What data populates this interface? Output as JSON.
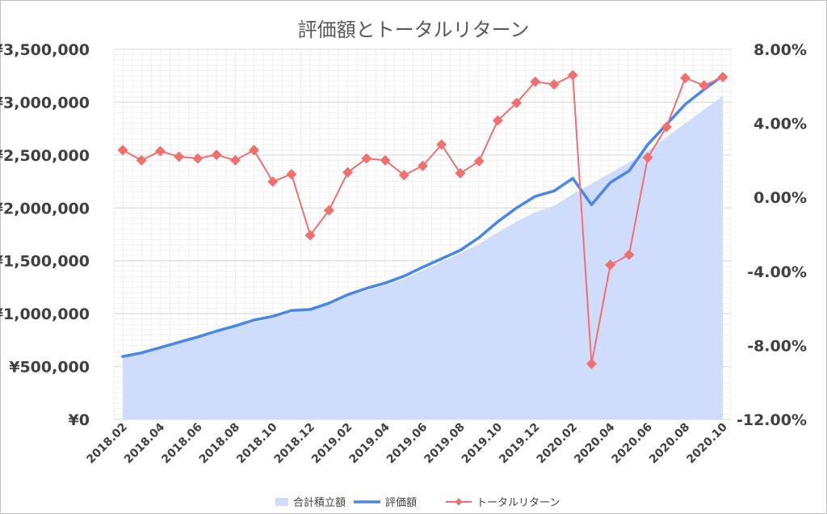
{
  "chart_data": {
    "type": "line",
    "title": "評価額とトータルリターン",
    "x": [
      "2018.02",
      "2018.03",
      "2018.04",
      "2018.05",
      "2018.06",
      "2018.07",
      "2018.08",
      "2018.09",
      "2018.10",
      "2018.11",
      "2018.12",
      "2019.01",
      "2019.02",
      "2019.03",
      "2019.04",
      "2019.05",
      "2019.06",
      "2019.07",
      "2019.08",
      "2019.09",
      "2019.10",
      "2019.11",
      "2019.12",
      "2020.01",
      "2020.02",
      "2020.03",
      "2020.04",
      "2020.05",
      "2020.06",
      "2020.07",
      "2020.08",
      "2020.09",
      "2020.10"
    ],
    "x_tick_labels": [
      "2018.02",
      "2018.04",
      "2018.06",
      "2018.08",
      "2018.10",
      "2018.12",
      "2019.02",
      "2019.04",
      "2019.06",
      "2019.08",
      "2019.10",
      "2019.12",
      "2020.02",
      "2020.04",
      "2020.06",
      "2020.08",
      "2020.10"
    ],
    "left_axis": {
      "ylim": [
        0,
        3500000
      ],
      "tick_labels": [
        "¥0",
        "¥500,000",
        "¥1,000,000",
        "¥1,500,000",
        "¥2,000,000",
        "¥2,500,000",
        "¥3,000,000",
        "¥3,500,000"
      ]
    },
    "right_axis": {
      "ylim": [
        -12,
        8
      ],
      "tick_labels": [
        "-12.00%",
        "-8.00%",
        "-4.00%",
        "0.00%",
        "4.00%",
        "8.00%"
      ]
    },
    "series": [
      {
        "name": "合計積立額",
        "type": "area",
        "axis": "left",
        "color": "#cfdcfb",
        "values": [
          590000,
          630000,
          680000,
          730000,
          780000,
          830000,
          880000,
          920000,
          960000,
          1010000,
          1040000,
          1100000,
          1170000,
          1220000,
          1270000,
          1330000,
          1410000,
          1490000,
          1570000,
          1660000,
          1770000,
          1870000,
          1960000,
          2020000,
          2130000,
          2230000,
          2330000,
          2430000,
          2540000,
          2670000,
          2800000,
          2930000,
          3060000
        ]
      },
      {
        "name": "評価額",
        "type": "line",
        "axis": "left",
        "color": "#4a86e8",
        "values": [
          595000,
          630000,
          680000,
          730000,
          780000,
          835000,
          885000,
          940000,
          975000,
          1030000,
          1040000,
          1100000,
          1180000,
          1240000,
          1290000,
          1355000,
          1440000,
          1520000,
          1600000,
          1720000,
          1870000,
          2000000,
          2110000,
          2160000,
          2280000,
          2030000,
          2240000,
          2350000,
          2600000,
          2790000,
          2980000,
          3120000,
          3250000
        ]
      },
      {
        "name": "トータルリターン",
        "type": "line",
        "axis": "right",
        "color": "#f07070",
        "values": [
          2.55,
          2.0,
          2.5,
          2.2,
          2.1,
          2.3,
          2.0,
          2.55,
          0.85,
          1.25,
          -2.05,
          -0.7,
          1.35,
          2.1,
          2.0,
          1.2,
          1.7,
          2.85,
          1.3,
          1.95,
          4.15,
          5.1,
          6.25,
          6.1,
          6.6,
          -9.0,
          -3.65,
          -3.1,
          2.15,
          3.8,
          6.45,
          6.05,
          6.5
        ]
      }
    ],
    "legend": {
      "position": "bottom",
      "labels": [
        "合計積立額",
        "評価額",
        "トータルリターン"
      ]
    },
    "grid": true
  }
}
